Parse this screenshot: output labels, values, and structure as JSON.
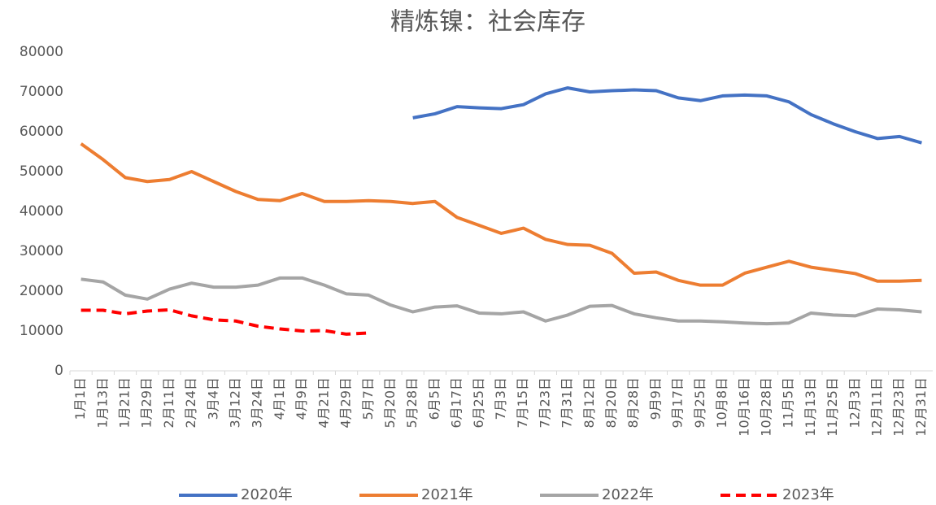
{
  "chart_data": {
    "type": "line",
    "title": "精炼镍：社会库存",
    "categories": [
      "1月1日",
      "1月13日",
      "1月21日",
      "1月29日",
      "2月11日",
      "2月24日",
      "3月4日",
      "3月12日",
      "3月24日",
      "4月1日",
      "4月9日",
      "4月21日",
      "4月29日",
      "5月7日",
      "5月20日",
      "5月28日",
      "6月5日",
      "6月17日",
      "6月25日",
      "7月3日",
      "7月15日",
      "7月23日",
      "7月31日",
      "8月12日",
      "8月20日",
      "8月28日",
      "9月9日",
      "9月17日",
      "9月25日",
      "10月8日",
      "10月16日",
      "10月28日",
      "11月5日",
      "11月13日",
      "11月25日",
      "12月3日",
      "12月11日",
      "12月23日",
      "12月31日"
    ],
    "series": [
      {
        "name": "2020年",
        "color": "#4472c4",
        "dash": false,
        "values": [
          null,
          null,
          null,
          null,
          null,
          null,
          null,
          null,
          null,
          null,
          null,
          null,
          null,
          null,
          null,
          63500,
          64500,
          66300,
          66000,
          65800,
          66800,
          69500,
          71000,
          70000,
          70300,
          70500,
          70300,
          68500,
          67800,
          69000,
          69200,
          69000,
          67500,
          64300,
          62000,
          60000,
          58300,
          58800,
          57200
        ]
      },
      {
        "name": "2021年",
        "color": "#ed7d31",
        "dash": false,
        "values": [
          57000,
          53000,
          48500,
          47500,
          48000,
          50000,
          47500,
          45000,
          43000,
          42700,
          44500,
          42500,
          42500,
          42700,
          42500,
          42000,
          42500,
          38500,
          36500,
          34500,
          35800,
          33000,
          31700,
          31500,
          29500,
          24500,
          24800,
          22700,
          21500,
          21500,
          24500,
          26000,
          27500,
          26000,
          25200,
          24400,
          22500,
          22500,
          22700
        ]
      },
      {
        "name": "2022年",
        "color": "#a5a5a5",
        "dash": false,
        "values": [
          23000,
          22300,
          19000,
          18000,
          20500,
          22000,
          21000,
          21000,
          21500,
          23300,
          23300,
          21500,
          19300,
          19000,
          16500,
          14800,
          16000,
          16300,
          14500,
          14300,
          14800,
          12500,
          14000,
          16200,
          16400,
          14300,
          13300,
          12500,
          12500,
          12300,
          12000,
          11800,
          12000,
          14500,
          14000,
          13800,
          15500,
          15300,
          14800
        ]
      },
      {
        "name": "2023年",
        "color": "#ff0000",
        "dash": true,
        "values": [
          15200,
          15200,
          14300,
          15000,
          15300,
          13800,
          12800,
          12500,
          11200,
          10500,
          10000,
          10100,
          9200,
          9500,
          null,
          null,
          null,
          null,
          null,
          null,
          null,
          null,
          null,
          null,
          null,
          null,
          null,
          null,
          null,
          null,
          null,
          null,
          null,
          null,
          null,
          null,
          null,
          null,
          null
        ]
      }
    ],
    "ylim": [
      0,
      80000
    ],
    "yticks": [
      0,
      10000,
      20000,
      30000,
      40000,
      50000,
      60000,
      70000,
      80000
    ],
    "legend": "bottom"
  }
}
